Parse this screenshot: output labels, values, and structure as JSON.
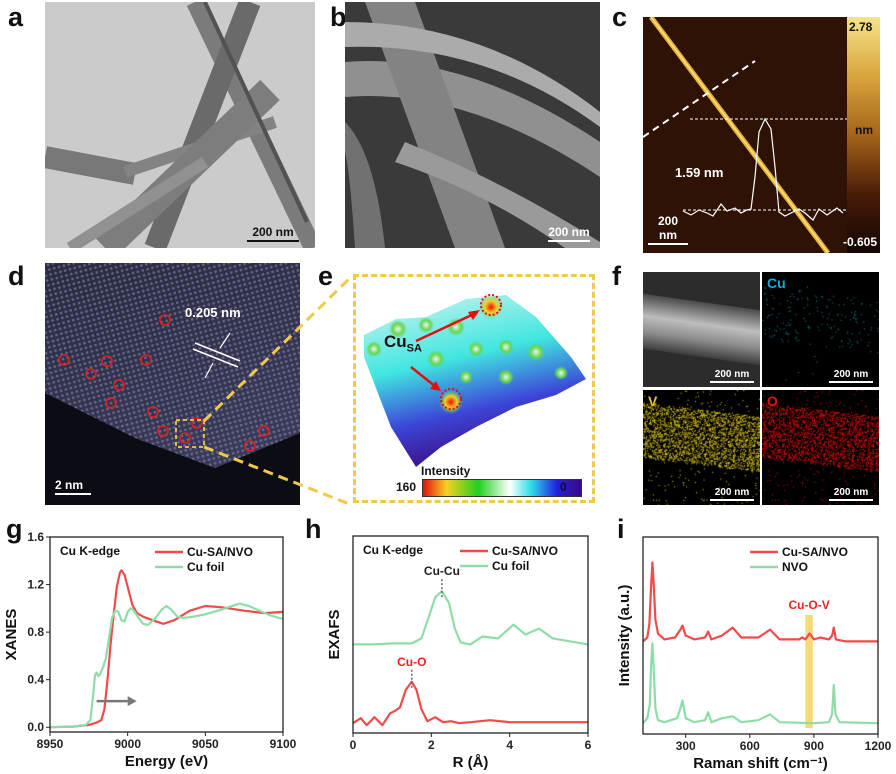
{
  "panels": {
    "a": {
      "label": "a",
      "scale_bar": "200 nm"
    },
    "b": {
      "label": "b",
      "scale_bar": "200 nm"
    },
    "c": {
      "label": "c",
      "scale_bar": "200 nm",
      "height_label": "1.59 nm",
      "colorbar_max": "2.78",
      "colorbar_unit": "nm",
      "colorbar_min": "-0.605"
    },
    "d": {
      "label": "d",
      "scale_bar": "2 nm",
      "d_spacing": "0.205 nm"
    },
    "e": {
      "label": "e",
      "annotation_main": "Cu",
      "annotation_sub": "SA",
      "colorbar_title": "Intensity",
      "colorbar_max": "160",
      "colorbar_min": "0"
    },
    "f": {
      "label": "f",
      "scale_bar": "200 nm",
      "maps": [
        "Cu",
        "V",
        "O"
      ],
      "map_colors": {
        "Cu": "#19a7d8",
        "V": "#e8d21a",
        "O": "#e01010"
      }
    },
    "g": {
      "label": "g"
    },
    "h": {
      "label": "h"
    },
    "i": {
      "label": "i"
    }
  },
  "chart_data": [
    {
      "id": "g",
      "type": "line",
      "annotation": "Cu K-edge",
      "xlabel": "Energy (eV)",
      "ylabel": "XANES",
      "xlim": [
        8950,
        9100
      ],
      "ylim": [
        -0.04,
        1.6
      ],
      "xticks": [
        8950,
        9000,
        9050,
        9100
      ],
      "yticks": [
        "0.0",
        "0.4",
        "0.8",
        "1.2",
        "1.6"
      ],
      "legend_position": "top-right",
      "series": [
        {
          "name": "Cu-SA/NVO",
          "color": "#f04a4a",
          "x": [
            8950,
            8965,
            8975,
            8980,
            8983,
            8985,
            8987,
            8989,
            8991,
            8993,
            8995,
            8996,
            8998,
            9000,
            9003,
            9006,
            9010,
            9016,
            9023,
            9030,
            9040,
            9050,
            9060,
            9075,
            9088,
            9100
          ],
          "y": [
            0,
            0.005,
            0.02,
            0.04,
            0.06,
            0.15,
            0.4,
            0.7,
            0.95,
            1.18,
            1.3,
            1.32,
            1.28,
            1.18,
            1.03,
            0.96,
            0.93,
            0.9,
            0.87,
            0.9,
            0.98,
            1.02,
            1.01,
            0.98,
            0.96,
            0.97
          ]
        },
        {
          "name": "Cu foil",
          "color": "#8fdca8",
          "x": [
            8950,
            8965,
            8973,
            8976,
            8978,
            8979,
            8980,
            8981,
            8982,
            8984,
            8986,
            8988,
            8990,
            8992,
            8994,
            8996,
            8998,
            9000,
            9002,
            9004,
            9007,
            9010,
            9013,
            9018,
            9022,
            9025,
            9028,
            9032,
            9036,
            9042,
            9050,
            9058,
            9065,
            9072,
            9078,
            9085,
            9092,
            9100
          ],
          "y": [
            0,
            0.005,
            0.02,
            0.06,
            0.3,
            0.44,
            0.46,
            0.43,
            0.44,
            0.5,
            0.58,
            0.75,
            0.92,
            0.98,
            0.97,
            0.9,
            0.89,
            0.97,
            1.0,
            0.98,
            0.92,
            0.87,
            0.86,
            0.92,
            0.99,
            1.02,
            0.99,
            0.93,
            0.92,
            0.93,
            0.95,
            0.98,
            1.01,
            1.04,
            1.02,
            0.98,
            0.94,
            0.91
          ]
        }
      ],
      "arrow_direction": "right"
    },
    {
      "id": "h",
      "type": "line",
      "annotation": "Cu K-edge",
      "xlabel": "R (Å)",
      "ylabel": "EXAFS",
      "xlim": [
        0,
        6
      ],
      "ylim": [
        0,
        1
      ],
      "xticks": [
        0,
        2,
        4,
        6
      ],
      "yticks": [],
      "legend_position": "top-right",
      "peak_labels": [
        {
          "text": "Cu-Cu",
          "x": 2.27,
          "color": "#222222"
        },
        {
          "text": "Cu-O",
          "x": 1.5,
          "color": "#f02020"
        }
      ],
      "series": [
        {
          "name": "Cu-SA/NVO",
          "color": "#f04a4a",
          "x": [
            0,
            0.2,
            0.35,
            0.55,
            0.75,
            0.95,
            1.1,
            1.2,
            1.35,
            1.5,
            1.62,
            1.75,
            1.9,
            2.1,
            2.3,
            2.5,
            2.7,
            3.0,
            3.5,
            4.0,
            5.0,
            6.0
          ],
          "y": [
            0.05,
            0.075,
            0.04,
            0.08,
            0.04,
            0.1,
            0.115,
            0.13,
            0.22,
            0.26,
            0.22,
            0.12,
            0.06,
            0.08,
            0.055,
            0.06,
            0.05,
            0.055,
            0.065,
            0.055,
            0.055,
            0.055
          ]
        },
        {
          "name": "Cu foil",
          "color": "#8fdca8",
          "x": [
            0,
            0.5,
            1.0,
            1.5,
            1.75,
            1.95,
            2.1,
            2.27,
            2.45,
            2.6,
            2.75,
            3.0,
            3.3,
            3.7,
            4.1,
            4.4,
            4.75,
            5.1,
            5.4,
            6.0
          ],
          "y": [
            0.45,
            0.45,
            0.455,
            0.455,
            0.48,
            0.6,
            0.69,
            0.72,
            0.66,
            0.53,
            0.46,
            0.45,
            0.49,
            0.48,
            0.55,
            0.5,
            0.53,
            0.48,
            0.47,
            0.45
          ]
        }
      ]
    },
    {
      "id": "i",
      "type": "line",
      "xlabel": "Raman shift (cm⁻¹)",
      "ylabel": "Intensity (a.u.)",
      "xlim": [
        100,
        1200
      ],
      "ylim": [
        0,
        1
      ],
      "xticks": [
        300,
        600,
        900,
        1200
      ],
      "yticks": [],
      "legend_position": "top-right",
      "highlight": {
        "text": "Cu-O-V",
        "from": 860,
        "to": 895,
        "color": "#f7d56a",
        "text_color": "#f02020"
      },
      "series": [
        {
          "name": "Cu-SA/NVO",
          "color": "#f04a4a",
          "x": [
            100,
            120,
            130,
            138,
            144,
            150,
            158,
            170,
            200,
            250,
            275,
            285,
            300,
            340,
            390,
            405,
            420,
            470,
            520,
            560,
            640,
            695,
            740,
            830,
            845,
            860,
            880,
            900,
            930,
            970,
            985,
            993,
            1003,
            1050,
            1200
          ],
          "y": [
            0.47,
            0.49,
            0.56,
            0.75,
            0.87,
            0.76,
            0.58,
            0.51,
            0.48,
            0.49,
            0.53,
            0.55,
            0.5,
            0.48,
            0.49,
            0.52,
            0.48,
            0.5,
            0.54,
            0.49,
            0.49,
            0.53,
            0.48,
            0.48,
            0.49,
            0.48,
            0.51,
            0.48,
            0.49,
            0.48,
            0.5,
            0.54,
            0.48,
            0.47,
            0.47
          ]
        },
        {
          "name": "NVO",
          "color": "#8fdca8",
          "x": [
            100,
            120,
            132,
            138,
            144,
            150,
            158,
            170,
            200,
            260,
            275,
            285,
            300,
            340,
            390,
            405,
            420,
            470,
            520,
            560,
            640,
            695,
            740,
            900,
            970,
            985,
            993,
            1001,
            1020,
            1200
          ],
          "y": [
            0.055,
            0.08,
            0.15,
            0.35,
            0.46,
            0.33,
            0.13,
            0.07,
            0.06,
            0.08,
            0.13,
            0.17,
            0.08,
            0.06,
            0.07,
            0.11,
            0.06,
            0.08,
            0.09,
            0.06,
            0.07,
            0.1,
            0.06,
            0.055,
            0.06,
            0.1,
            0.25,
            0.1,
            0.06,
            0.055
          ]
        }
      ]
    }
  ]
}
